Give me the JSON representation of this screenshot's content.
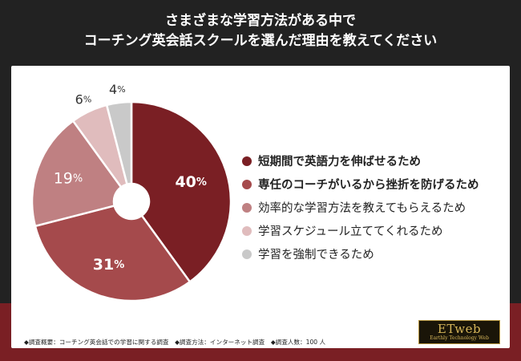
{
  "header": {
    "title_line1": "さまざまな学習方法がある中で",
    "title_line2": "コーチング英会話スクールを選んだ理由を教えてください"
  },
  "chart_data": {
    "type": "pie",
    "donut": true,
    "unit": "%",
    "title": "",
    "categories": [
      "短期間で英語力を伸ばせるため",
      "専任のコーチがいるから挫折を防げるため",
      "効率的な学習方法を教えてもらえるため",
      "学習スケジュール立ててくれるため",
      "学習を強制できるため"
    ],
    "values": [
      40,
      31,
      19,
      6,
      4
    ],
    "colors": [
      "#7a1f24",
      "#a54a4c",
      "#bf8082",
      "#e0bcbd",
      "#c9c9c9"
    ],
    "label_colors": [
      "#ffffff",
      "#ffffff",
      "#ffffff",
      "#333333",
      "#333333"
    ],
    "label_inside": [
      true,
      true,
      true,
      false,
      false
    ],
    "legend_bold": [
      true,
      true,
      false,
      false,
      false
    ],
    "legend_position": "right"
  },
  "footnote": "◆調査概要：コーチング英会話での学習に関する調査　◆調査方法：インターネット調査　◆調査人数：100 人",
  "logo": {
    "main": "ETweb",
    "sub": "Earthly Technology Web"
  }
}
